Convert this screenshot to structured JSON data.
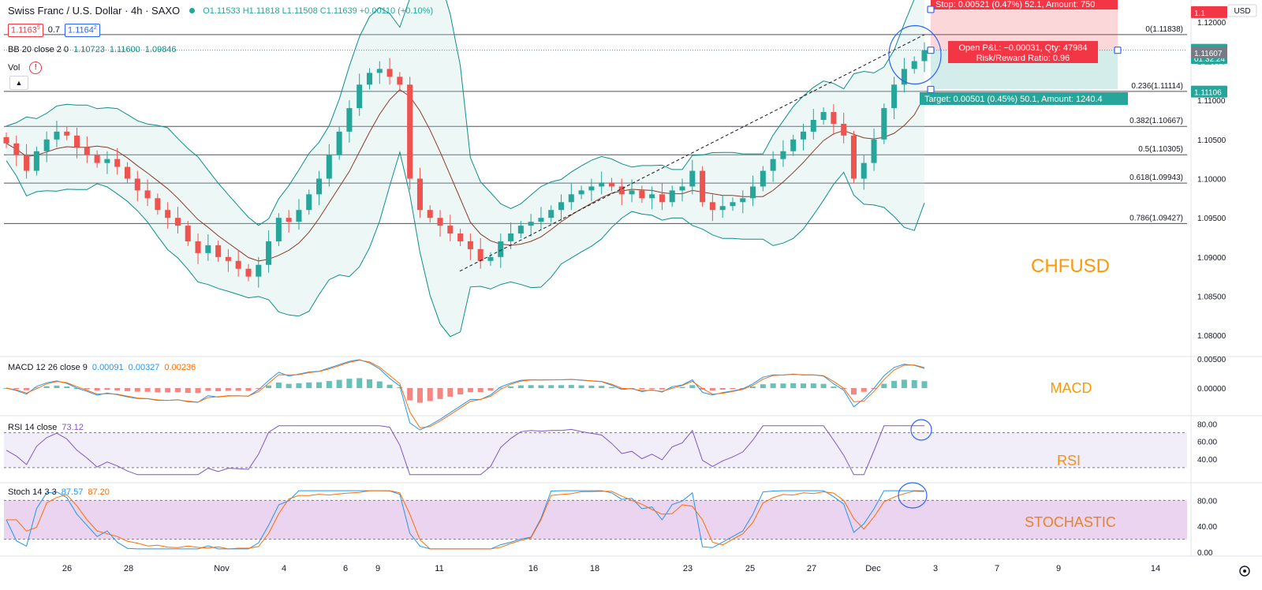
{
  "header": {
    "title": "Swiss Franc / U.S. Dollar · 4h · SAXO",
    "ohlc": "O1.11533 H1.11818 L1.11508 C1.11639 +0.00110 (+0.10%)",
    "sell_price": "1.1163",
    "sell_price_sup": "5",
    "spread": "0.7",
    "buy_price": "1.1164",
    "buy_price_sup": "2"
  },
  "indicators": {
    "bb": {
      "label": "BB 20 close 2 0",
      "v1": "1.10723",
      "v2": "1.11600",
      "v3": "1.09846"
    },
    "vol": {
      "label": "Vol",
      "warn": "!"
    },
    "macd": {
      "label": "MACD 12 26 close 9",
      "v1": "0.00091",
      "v2": "0.00327",
      "v3": "0.00236"
    },
    "rsi": {
      "label": "RSI 14 close",
      "v1": "73.12"
    },
    "stoch": {
      "label": "Stoch 14 3 3",
      "v1": "87.57",
      "v2": "87.20"
    }
  },
  "annotations": {
    "chf": "CHFUSD",
    "macd": "MACD",
    "rsi": "RSI",
    "stoch": "STOCHASTIC"
  },
  "position": {
    "stop": "Stop: 0.00521 (0.47%) 52.1, Amount: 750",
    "pnl": "Open P&L: −0.00031, Qty: 47984",
    "rr": "Risk/Reward Ratio: 0.96",
    "target": "Target: 0.00501 (0.45%) 50.1, Amount: 1240.4"
  },
  "fib_levels": [
    {
      "label": "0(1.11838)",
      "value": 1.11838
    },
    {
      "label": "0.236(1.11114)",
      "value": 1.11114
    },
    {
      "label": "0.382(1.10667)",
      "value": 1.10667
    },
    {
      "label": "0.5(1.10305)",
      "value": 1.10305
    },
    {
      "label": "0.618(1.09943)",
      "value": 1.09943
    },
    {
      "label": "0.786(1.09427)",
      "value": 1.09427
    }
  ],
  "price_axis": {
    "currency": "USD",
    "ticks": [
      "1.12000",
      "1.11500",
      "1.11000",
      "1.10500",
      "1.10000",
      "1.09500",
      "1.09000",
      "1.08500",
      "1.08000"
    ],
    "tags": [
      {
        "label": "1.11639",
        "color": "#26a69a",
        "value": 1.11639
      },
      {
        "label": "01:32:24",
        "color": "#26a69a",
        "value": 1.11535
      },
      {
        "label": "1.11607",
        "color": "#787b86",
        "value": 1.11607
      },
      {
        "label": "1.11106",
        "color": "#26a69a",
        "value": 1.11106
      },
      {
        "label": "1.1",
        "color": "#f23645",
        "value": 1.1212
      }
    ]
  },
  "macd_axis": {
    "ticks": [
      "0.00500",
      "0.00000"
    ]
  },
  "rsi_axis": {
    "ticks": [
      "80.00",
      "60.00",
      "40.00"
    ]
  },
  "stoch_axis": {
    "ticks": [
      "80.00",
      "40.00",
      "0.00"
    ]
  },
  "time_axis": [
    "26",
    "28",
    "Nov",
    "4",
    "6",
    "9",
    "11",
    "16",
    "18",
    "23",
    "25",
    "27",
    "Dec",
    "3",
    "7",
    "9",
    "14"
  ],
  "colors": {
    "up": "#26a69a",
    "down": "#ef5350",
    "bb": "#0c8f88",
    "basis": "#8b3a2b",
    "macd": "#2196f3",
    "signal": "#ff6d00",
    "rsi": "#7e57c2",
    "annotation": "#ff9800",
    "circle": "#2962ff"
  },
  "icons": {
    "settings": "gear-icon",
    "collapse": "chevron-up-icon",
    "status": "dot-icon"
  },
  "chart_data": {
    "type": "candlestick",
    "symbol": "CHFUSD",
    "timeframe": "4h",
    "ylim": [
      1.0775,
      1.1228
    ],
    "closes": [
      1.1045,
      1.103,
      1.101,
      1.1035,
      1.105,
      1.106,
      1.1055,
      1.104,
      1.103,
      1.102,
      1.1025,
      1.1015,
      1.1,
      1.0985,
      1.0975,
      1.096,
      1.095,
      1.094,
      1.092,
      1.0905,
      1.0915,
      1.09,
      1.0895,
      1.0885,
      1.0875,
      1.089,
      1.092,
      1.095,
      1.0945,
      1.096,
      1.098,
      1.1,
      1.103,
      1.106,
      1.109,
      1.112,
      1.1135,
      1.114,
      1.113,
      1.112,
      1.1,
      1.096,
      1.095,
      1.094,
      1.093,
      1.092,
      1.091,
      1.0895,
      1.09,
      1.092,
      1.093,
      1.094,
      1.0945,
      1.095,
      1.096,
      1.097,
      1.098,
      1.0985,
      1.099,
      1.0995,
      1.099,
      1.098,
      1.0985,
      1.0975,
      1.098,
      1.097,
      1.0985,
      1.099,
      1.101,
      1.097,
      1.096,
      1.0965,
      1.097,
      1.0975,
      1.099,
      1.101,
      1.1025,
      1.1035,
      1.105,
      1.106,
      1.1075,
      1.1085,
      1.107,
      1.1055,
      1.1,
      1.102,
      1.105,
      1.109,
      1.112,
      1.114,
      1.115,
      1.1164
    ]
  }
}
